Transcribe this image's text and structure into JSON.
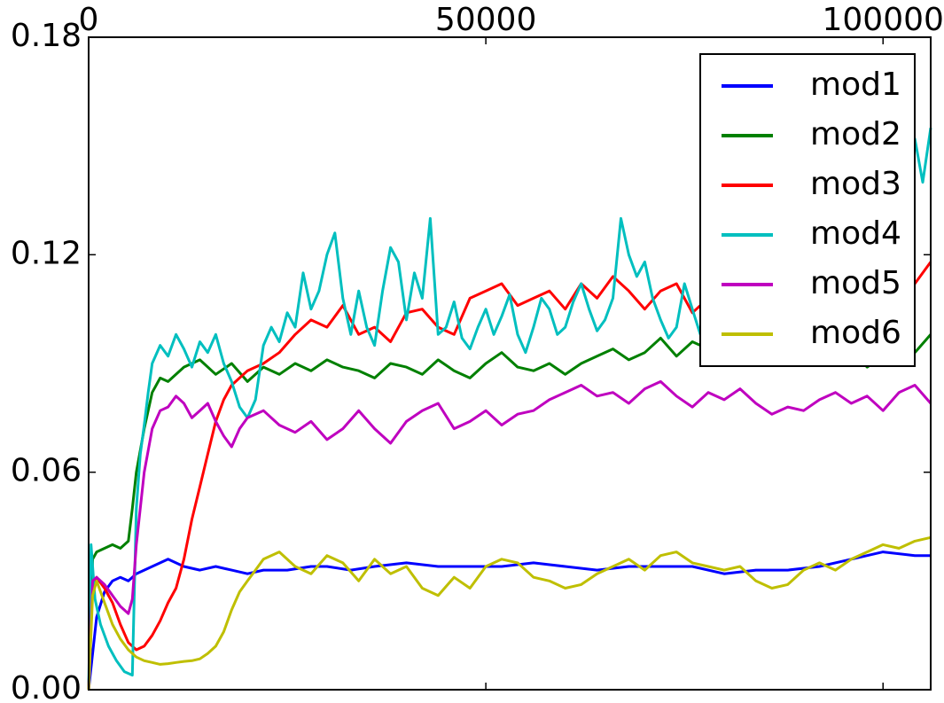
{
  "chart_data": {
    "type": "line",
    "title": "",
    "xlabel": "",
    "ylabel": "",
    "xlim": [
      0,
      106000
    ],
    "ylim": [
      0,
      0.18
    ],
    "x_ticks": [
      0,
      50000,
      100000
    ],
    "x_tick_labels": [
      "0",
      "50000",
      "100000"
    ],
    "x_axis_position": "top",
    "y_ticks": [
      0,
      0.06,
      0.12,
      0.18
    ],
    "y_tick_labels": [
      "0.00",
      "0.06",
      "0.12",
      "0.18"
    ],
    "grid": false,
    "legend_position": "top-right",
    "series": [
      {
        "name": "mod1",
        "color": "#0000ff",
        "x": [
          0,
          1000,
          2000,
          3000,
          4000,
          5000,
          6000,
          8000,
          10000,
          12000,
          14000,
          16000,
          18000,
          20000,
          22000,
          25000,
          28000,
          30000,
          33000,
          36000,
          40000,
          44000,
          48000,
          52000,
          56000,
          60000,
          64000,
          68000,
          72000,
          76000,
          80000,
          84000,
          88000,
          92000,
          96000,
          100000,
          104000,
          106000
        ],
        "y": [
          0.0,
          0.02,
          0.027,
          0.03,
          0.031,
          0.03,
          0.032,
          0.034,
          0.036,
          0.034,
          0.033,
          0.034,
          0.033,
          0.032,
          0.033,
          0.033,
          0.034,
          0.034,
          0.033,
          0.034,
          0.035,
          0.034,
          0.034,
          0.034,
          0.035,
          0.034,
          0.033,
          0.034,
          0.034,
          0.034,
          0.032,
          0.033,
          0.033,
          0.034,
          0.036,
          0.038,
          0.037,
          0.037
        ]
      },
      {
        "name": "mod2",
        "color": "#008000",
        "x": [
          0,
          500,
          1000,
          2000,
          3000,
          4000,
          5000,
          5500,
          6000,
          7000,
          8000,
          9000,
          10000,
          12000,
          14000,
          16000,
          18000,
          20000,
          22000,
          24000,
          26000,
          28000,
          30000,
          32000,
          34000,
          36000,
          38000,
          40000,
          42000,
          44000,
          46000,
          48000,
          50000,
          52000,
          54000,
          56000,
          58000,
          60000,
          62000,
          64000,
          66000,
          68000,
          70000,
          72000,
          74000,
          76000,
          78000,
          80000,
          82000,
          84000,
          86000,
          88000,
          90000,
          92000,
          94000,
          96000,
          98000,
          100000,
          102000,
          104000,
          106000
        ],
        "y": [
          0.0,
          0.036,
          0.038,
          0.039,
          0.04,
          0.039,
          0.041,
          0.05,
          0.06,
          0.072,
          0.082,
          0.086,
          0.085,
          0.089,
          0.091,
          0.087,
          0.09,
          0.085,
          0.089,
          0.087,
          0.09,
          0.088,
          0.091,
          0.089,
          0.088,
          0.086,
          0.09,
          0.089,
          0.087,
          0.091,
          0.088,
          0.086,
          0.09,
          0.093,
          0.089,
          0.088,
          0.09,
          0.087,
          0.09,
          0.092,
          0.094,
          0.091,
          0.093,
          0.097,
          0.092,
          0.096,
          0.094,
          0.097,
          0.099,
          0.093,
          0.09,
          0.096,
          0.095,
          0.09,
          0.092,
          0.094,
          0.089,
          0.092,
          0.097,
          0.093,
          0.098
        ]
      },
      {
        "name": "mod3",
        "color": "#ff0000",
        "x": [
          0,
          500,
          1000,
          2000,
          3000,
          4000,
          5000,
          6000,
          7000,
          8000,
          9000,
          10000,
          11000,
          12000,
          13000,
          14000,
          15000,
          16000,
          17000,
          18000,
          20000,
          22000,
          24000,
          26000,
          28000,
          30000,
          32000,
          34000,
          36000,
          38000,
          40000,
          42000,
          44000,
          46000,
          48000,
          50000,
          52000,
          54000,
          56000,
          58000,
          60000,
          62000,
          64000,
          66000,
          68000,
          70000,
          72000,
          74000,
          76000,
          78000,
          80000,
          82000,
          84000,
          86000,
          88000,
          90000,
          92000,
          94000,
          96000,
          98000,
          100000,
          102000,
          104000,
          106000
        ],
        "y": [
          0.0,
          0.029,
          0.031,
          0.028,
          0.024,
          0.018,
          0.013,
          0.011,
          0.012,
          0.015,
          0.019,
          0.024,
          0.028,
          0.036,
          0.047,
          0.056,
          0.065,
          0.074,
          0.08,
          0.084,
          0.088,
          0.09,
          0.093,
          0.098,
          0.102,
          0.1,
          0.106,
          0.098,
          0.1,
          0.096,
          0.104,
          0.105,
          0.1,
          0.098,
          0.108,
          0.11,
          0.112,
          0.106,
          0.108,
          0.11,
          0.105,
          0.112,
          0.108,
          0.114,
          0.11,
          0.105,
          0.11,
          0.112,
          0.104,
          0.108,
          0.111,
          0.114,
          0.109,
          0.112,
          0.116,
          0.112,
          0.115,
          0.111,
          0.114,
          0.117,
          0.113,
          0.116,
          0.112,
          0.118
        ]
      },
      {
        "name": "mod4",
        "color": "#00bfbf",
        "x": [
          0,
          300,
          800,
          1500,
          2500,
          3500,
          4500,
          5500,
          6000,
          6500,
          7000,
          7500,
          8000,
          9000,
          10000,
          11000,
          12000,
          13000,
          14000,
          15000,
          16000,
          17000,
          18000,
          19000,
          20000,
          21000,
          22000,
          23000,
          24000,
          25000,
          26000,
          27000,
          28000,
          29000,
          30000,
          31000,
          32000,
          33000,
          34000,
          35000,
          36000,
          37000,
          38000,
          39000,
          40000,
          41000,
          42000,
          43000,
          44000,
          45000,
          46000,
          47000,
          48000,
          49000,
          50000,
          51000,
          52000,
          53000,
          54000,
          55000,
          56000,
          57000,
          58000,
          59000,
          60000,
          61000,
          62000,
          63000,
          64000,
          65000,
          66000,
          67000,
          68000,
          69000,
          70000,
          71000,
          72000,
          73000,
          74000,
          75000,
          76000,
          77000,
          78000,
          79000,
          80000,
          81000,
          82000,
          83000,
          84000,
          85000,
          86000,
          87000,
          88000,
          89000,
          90000,
          91000,
          92000,
          93000,
          94000,
          95000,
          96000,
          97000,
          98000,
          99000,
          100000,
          101000,
          102000,
          103000,
          104000,
          105000,
          106000
        ],
        "y": [
          0.0,
          0.04,
          0.025,
          0.018,
          0.012,
          0.008,
          0.005,
          0.004,
          0.05,
          0.065,
          0.073,
          0.082,
          0.09,
          0.095,
          0.092,
          0.098,
          0.094,
          0.089,
          0.096,
          0.093,
          0.098,
          0.09,
          0.085,
          0.078,
          0.075,
          0.08,
          0.095,
          0.1,
          0.096,
          0.104,
          0.1,
          0.115,
          0.105,
          0.11,
          0.12,
          0.126,
          0.108,
          0.098,
          0.11,
          0.1,
          0.095,
          0.11,
          0.122,
          0.118,
          0.102,
          0.115,
          0.108,
          0.13,
          0.098,
          0.1,
          0.107,
          0.097,
          0.094,
          0.1,
          0.105,
          0.098,
          0.103,
          0.109,
          0.098,
          0.093,
          0.1,
          0.108,
          0.105,
          0.098,
          0.1,
          0.107,
          0.112,
          0.105,
          0.099,
          0.102,
          0.108,
          0.13,
          0.12,
          0.114,
          0.118,
          0.108,
          0.102,
          0.097,
          0.1,
          0.112,
          0.105,
          0.098,
          0.107,
          0.115,
          0.133,
          0.122,
          0.105,
          0.096,
          0.098,
          0.103,
          0.108,
          0.1,
          0.114,
          0.118,
          0.11,
          0.117,
          0.125,
          0.115,
          0.122,
          0.118,
          0.13,
          0.126,
          0.133,
          0.12,
          0.128,
          0.13,
          0.122,
          0.143,
          0.152,
          0.14,
          0.155
        ]
      },
      {
        "name": "mod5",
        "color": "#bf00bf",
        "x": [
          0,
          500,
          1000,
          2000,
          3000,
          4000,
          5000,
          5500,
          6000,
          7000,
          8000,
          9000,
          10000,
          11000,
          12000,
          13000,
          14000,
          15000,
          16000,
          17000,
          18000,
          19000,
          20000,
          22000,
          24000,
          26000,
          28000,
          30000,
          32000,
          34000,
          36000,
          38000,
          40000,
          42000,
          44000,
          46000,
          48000,
          50000,
          52000,
          54000,
          56000,
          58000,
          60000,
          62000,
          64000,
          66000,
          68000,
          70000,
          72000,
          74000,
          76000,
          78000,
          80000,
          82000,
          84000,
          86000,
          88000,
          90000,
          92000,
          94000,
          96000,
          98000,
          100000,
          102000,
          104000,
          106000
        ],
        "y": [
          0.0,
          0.03,
          0.031,
          0.029,
          0.026,
          0.023,
          0.021,
          0.025,
          0.04,
          0.06,
          0.072,
          0.077,
          0.078,
          0.081,
          0.079,
          0.075,
          0.077,
          0.079,
          0.074,
          0.07,
          0.067,
          0.072,
          0.075,
          0.077,
          0.073,
          0.071,
          0.074,
          0.069,
          0.072,
          0.077,
          0.072,
          0.068,
          0.074,
          0.077,
          0.079,
          0.072,
          0.074,
          0.077,
          0.073,
          0.076,
          0.077,
          0.08,
          0.082,
          0.084,
          0.081,
          0.082,
          0.079,
          0.083,
          0.085,
          0.081,
          0.078,
          0.082,
          0.08,
          0.083,
          0.079,
          0.076,
          0.078,
          0.077,
          0.08,
          0.082,
          0.079,
          0.081,
          0.077,
          0.082,
          0.084,
          0.079
        ]
      },
      {
        "name": "mod6",
        "color": "#bfbf00",
        "x": [
          0,
          500,
          1000,
          2000,
          3000,
          4000,
          5000,
          6000,
          7000,
          8000,
          9000,
          10000,
          11000,
          12000,
          13000,
          14000,
          15000,
          16000,
          17000,
          18000,
          19000,
          20000,
          21000,
          22000,
          24000,
          26000,
          28000,
          30000,
          32000,
          34000,
          36000,
          38000,
          40000,
          42000,
          44000,
          46000,
          48000,
          50000,
          52000,
          54000,
          56000,
          58000,
          60000,
          62000,
          64000,
          66000,
          68000,
          70000,
          72000,
          74000,
          76000,
          78000,
          80000,
          82000,
          84000,
          86000,
          88000,
          90000,
          92000,
          94000,
          96000,
          98000,
          100000,
          102000,
          104000,
          106000
        ],
        "y": [
          0.0,
          0.026,
          0.03,
          0.024,
          0.018,
          0.014,
          0.011,
          0.009,
          0.008,
          0.0075,
          0.007,
          0.0072,
          0.0075,
          0.0078,
          0.008,
          0.0085,
          0.01,
          0.012,
          0.016,
          0.022,
          0.027,
          0.03,
          0.033,
          0.036,
          0.038,
          0.034,
          0.032,
          0.037,
          0.035,
          0.03,
          0.036,
          0.032,
          0.034,
          0.028,
          0.026,
          0.031,
          0.028,
          0.034,
          0.036,
          0.035,
          0.031,
          0.03,
          0.028,
          0.029,
          0.032,
          0.034,
          0.036,
          0.033,
          0.037,
          0.038,
          0.035,
          0.034,
          0.033,
          0.034,
          0.03,
          0.028,
          0.029,
          0.033,
          0.035,
          0.033,
          0.036,
          0.038,
          0.04,
          0.039,
          0.041,
          0.042
        ]
      }
    ]
  }
}
